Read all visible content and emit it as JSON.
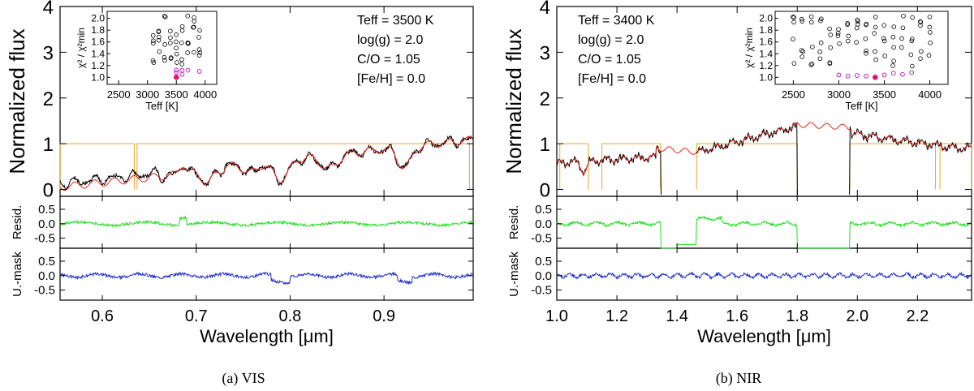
{
  "chart_data": [
    {
      "type": "line",
      "panel": "VIS",
      "caption": "(a) VIS",
      "xlabel": "Wavelength [μm]",
      "ylabel": "Normalized flux",
      "resid_ylabel": "Resid.",
      "umask_ylabel": "U.-mask",
      "xlim": [
        0.555,
        0.995
      ],
      "ylim": [
        -0.15,
        4.0
      ],
      "resid_ylim": [
        -0.85,
        0.95
      ],
      "x_ticks": [
        "0.6",
        "0.7",
        "0.8",
        "0.9"
      ],
      "x_tick_values": [
        0.6,
        0.7,
        0.8,
        0.9
      ],
      "y_ticks": [
        "0",
        "1",
        "2",
        "3",
        "4"
      ],
      "y_tick_values": [
        0,
        1,
        2,
        3,
        4
      ],
      "resid_ticks": [
        "0.5",
        "0.0",
        "-0.5"
      ],
      "resid_tick_values": [
        0.5,
        0.0,
        -0.5
      ],
      "params": [
        "Teff = 3500 K",
        "log(g) = 2.0",
        "C/O = 1.05",
        "[Fe/H] = 0.0"
      ],
      "mask_segments": [
        [
          0.555,
          0.634
        ],
        [
          0.637,
          0.991
        ]
      ],
      "gaps": [],
      "residual_dropouts": [],
      "series": [
        {
          "name": "Observed spectrum",
          "color": "#000000"
        },
        {
          "name": "Best-fit model",
          "color": "#e8231b"
        },
        {
          "name": "Mask",
          "color": "#e6a628"
        },
        {
          "name": "Residuals",
          "color": "#22dd22"
        },
        {
          "name": "Unmasked residuals",
          "color": "#1f2fc8"
        }
      ],
      "inset": {
        "xlabel": "Teff [K]",
        "ylabel": "χ² / χ²min",
        "xlim": [
          2300,
          4200
        ],
        "ylim": [
          0.88,
          2.12
        ],
        "x_ticks": [
          "2500",
          "3000",
          "3500",
          "4000"
        ],
        "x_tick_values": [
          2500,
          3000,
          3500,
          4000
        ],
        "y_ticks": [
          "1.0",
          "1.2",
          "1.4",
          "1.6",
          "1.8",
          "2.0"
        ],
        "y_tick_values": [
          1.0,
          1.2,
          1.4,
          1.6,
          1.8,
          2.0
        ],
        "teff_range": [
          3100,
          3900
        ],
        "best": [
          3500,
          1.0
        ],
        "near_best_points": [
          [
            3500,
            1.08
          ],
          [
            3500,
            1.12
          ],
          [
            3600,
            1.05
          ],
          [
            3600,
            1.12
          ],
          [
            3700,
            1.12
          ],
          [
            3900,
            1.1
          ]
        ]
      }
    },
    {
      "type": "line",
      "panel": "NIR",
      "caption": "(b) NIR",
      "xlabel": "Wavelength [μm]",
      "ylabel": "Normalized flux",
      "resid_ylabel": "Resid.",
      "umask_ylabel": "U.-mask",
      "xlim": [
        1.0,
        2.38
      ],
      "ylim": [
        -0.15,
        4.0
      ],
      "resid_ylim": [
        -0.85,
        0.95
      ],
      "x_ticks": [
        "1.0",
        "1.2",
        "1.4",
        "1.6",
        "1.8",
        "2.0",
        "2.2"
      ],
      "x_tick_values": [
        1.0,
        1.2,
        1.4,
        1.6,
        1.8,
        2.0,
        2.2
      ],
      "y_ticks": [
        "0",
        "1",
        "2",
        "3",
        "4"
      ],
      "y_tick_values": [
        0,
        1,
        2,
        3,
        4
      ],
      "resid_ticks": [
        "0.5",
        "0.0",
        "-0.5"
      ],
      "resid_tick_values": [
        0.5,
        0.0,
        -0.5
      ],
      "params": [
        "Teff = 3400 K",
        "log(g) = 2.0",
        "C/O = 1.05",
        "[Fe/H] = 0.0"
      ],
      "mask_segments": [
        [
          1.01,
          1.105
        ],
        [
          1.15,
          1.345
        ],
        [
          1.465,
          1.8
        ],
        [
          1.975,
          2.26
        ],
        [
          2.275,
          2.38
        ]
      ],
      "gaps": [
        [
          1.345,
          1.465
        ],
        [
          1.8,
          1.975
        ]
      ],
      "residual_dropouts": [
        [
          1.345,
          1.465
        ],
        [
          1.8,
          1.975
        ]
      ],
      "series": [
        {
          "name": "Observed spectrum",
          "color": "#000000"
        },
        {
          "name": "Best-fit model",
          "color": "#e8231b"
        },
        {
          "name": "Mask",
          "color": "#e6a628"
        },
        {
          "name": "Residuals",
          "color": "#22dd22"
        },
        {
          "name": "Unmasked residuals",
          "color": "#1f2fc8"
        }
      ],
      "inset": {
        "xlabel": "Teff [K]",
        "ylabel": "χ² / χ²min",
        "xlim": [
          2300,
          4200
        ],
        "ylim": [
          0.88,
          2.12
        ],
        "x_ticks": [
          "2500",
          "3000",
          "3500",
          "4000"
        ],
        "x_tick_values": [
          2500,
          3000,
          3500,
          4000
        ],
        "y_ticks": [
          "1.0",
          "1.2",
          "1.4",
          "1.6",
          "1.8",
          "2.0"
        ],
        "y_tick_values": [
          1.0,
          1.2,
          1.4,
          1.6,
          1.8,
          2.0
        ],
        "teff_range": [
          2500,
          4000
        ],
        "best": [
          3400,
          1.0
        ],
        "near_best_points": [
          [
            3000,
            1.04
          ],
          [
            3100,
            1.02
          ],
          [
            3200,
            1.03
          ],
          [
            3300,
            1.02
          ],
          [
            3500,
            1.04
          ],
          [
            3600,
            1.07
          ],
          [
            3700,
            1.05
          ],
          [
            3800,
            1.08
          ]
        ]
      }
    }
  ]
}
